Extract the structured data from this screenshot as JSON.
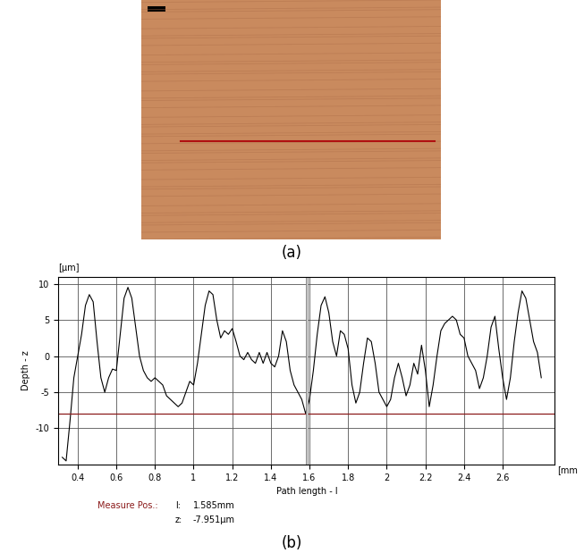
{
  "photo": {
    "caption": "(a)"
  },
  "chart_data": {
    "type": "line",
    "caption": "(b)",
    "x_label": "Path length - l",
    "y_label": "Depth - z",
    "x_unit": "[mm",
    "y_unit": "[µm]",
    "x": [
      0.32,
      0.34,
      0.36,
      0.38,
      0.4,
      0.42,
      0.44,
      0.46,
      0.48,
      0.5,
      0.52,
      0.54,
      0.56,
      0.58,
      0.6,
      0.62,
      0.64,
      0.66,
      0.68,
      0.7,
      0.72,
      0.74,
      0.76,
      0.78,
      0.8,
      0.82,
      0.84,
      0.86,
      0.88,
      0.9,
      0.92,
      0.94,
      0.96,
      0.98,
      1.0,
      1.02,
      1.04,
      1.06,
      1.08,
      1.1,
      1.12,
      1.14,
      1.16,
      1.18,
      1.2,
      1.22,
      1.24,
      1.26,
      1.28,
      1.3,
      1.32,
      1.34,
      1.36,
      1.38,
      1.4,
      1.42,
      1.44,
      1.46,
      1.48,
      1.5,
      1.52,
      1.54,
      1.56,
      1.58,
      1.6,
      1.62,
      1.64,
      1.66,
      1.68,
      1.7,
      1.72,
      1.74,
      1.76,
      1.78,
      1.8,
      1.82,
      1.84,
      1.86,
      1.88,
      1.9,
      1.92,
      1.94,
      1.96,
      1.98,
      2.0,
      2.02,
      2.04,
      2.06,
      2.08,
      2.1,
      2.12,
      2.14,
      2.16,
      2.18,
      2.2,
      2.22,
      2.24,
      2.26,
      2.28,
      2.3,
      2.32,
      2.34,
      2.36,
      2.38,
      2.4,
      2.42,
      2.44,
      2.46,
      2.48,
      2.5,
      2.52,
      2.54,
      2.56,
      2.58,
      2.6,
      2.62,
      2.64,
      2.66,
      2.68,
      2.7,
      2.72,
      2.74,
      2.76,
      2.78,
      2.8
    ],
    "values": [
      -14,
      -14.5,
      -9,
      -3,
      0,
      3,
      7,
      8.5,
      7.5,
      2,
      -3,
      -5,
      -3,
      -1.8,
      -2,
      3,
      8,
      9.5,
      8,
      4,
      0,
      -2,
      -3,
      -3.5,
      -3,
      -3.5,
      -4,
      -5.5,
      -6,
      -6.5,
      -7,
      -6.5,
      -5,
      -3.5,
      -4,
      -1,
      3,
      7,
      9,
      8.5,
      5,
      2.5,
      3.5,
      3,
      3.8,
      2,
      0,
      -0.5,
      0.5,
      -0.5,
      -1,
      0.5,
      -1,
      0.5,
      -1,
      -1.5,
      0,
      3.5,
      2,
      -2,
      -4,
      -5,
      -6,
      -7.95,
      -6,
      -2,
      3,
      7,
      8.2,
      6,
      2,
      0,
      3.5,
      3,
      1,
      -4,
      -6.5,
      -5,
      -1,
      2.5,
      2,
      -1,
      -5,
      -6,
      -7,
      -6,
      -3,
      -1,
      -3,
      -5.5,
      -4,
      -1,
      -2.5,
      1.5,
      -2,
      -7,
      -4,
      0,
      3.5,
      4.5,
      5,
      5.5,
      5,
      3,
      2.5,
      0,
      -1,
      -2,
      -4.5,
      -3,
      0,
      4,
      5.5,
      1,
      -3,
      -6,
      -3,
      2,
      6,
      9,
      8,
      5,
      2,
      0.5,
      -3
    ],
    "color": "#000000",
    "xlim": [
      0.3,
      2.87
    ],
    "xticks": [
      0.4,
      0.6,
      0.8,
      1,
      1.2,
      1.4,
      1.6,
      1.8,
      2,
      2.2,
      2.4,
      2.6
    ],
    "ylim": [
      -15,
      11
    ],
    "yticks": [
      -10,
      -5,
      0,
      5,
      10
    ],
    "grid": true,
    "measure": {
      "title": "Measure Pos.:",
      "l_name": "l:",
      "l": 1.585,
      "l_label": "1.585mm",
      "z_name": "z:",
      "z": -7.951,
      "z_label": "-7.951µm"
    }
  }
}
